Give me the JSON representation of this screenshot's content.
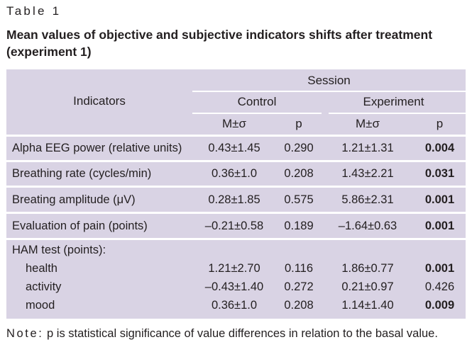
{
  "caption": {
    "label": "Table 1",
    "title": "Mean values of objective and subjective indicators shifts after treatment (experiment 1)"
  },
  "header": {
    "indicators": "Indicators",
    "session": "Session",
    "control": "Control",
    "experiment": "Experiment",
    "mean": "M±σ",
    "p": "p"
  },
  "rows": [
    {
      "indicator": "Alpha EEG power (relative units)",
      "control_m": "0.43±1.45",
      "control_p": "0.290",
      "exp_m": "1.21±1.31",
      "exp_p": "0.004",
      "exp_p_bold": true
    },
    {
      "indicator": "Breathing rate (cycles/min)",
      "control_m": "0.36±1.0",
      "control_p": "0.208",
      "exp_m": "1.43±2.21",
      "exp_p": "0.031",
      "exp_p_bold": true
    },
    {
      "indicator": "Breating amplitude (μV)",
      "control_m": "0.28±1.85",
      "control_p": "0.575",
      "exp_m": "5.86±2.31",
      "exp_p": "0.001",
      "exp_p_bold": true
    },
    {
      "indicator": "Evaluation of pain (points)",
      "control_m": "–0.21±0.58",
      "control_p": "0.189",
      "exp_m": "–1.64±0.63",
      "exp_p": "0.001",
      "exp_p_bold": true
    }
  ],
  "ham": {
    "label": "HAM test (points):",
    "rows": [
      {
        "indicator": "health",
        "control_m": "1.21±2.70",
        "control_p": "0.116",
        "exp_m": "1.86±0.77",
        "exp_p": "0.001",
        "exp_p_bold": true
      },
      {
        "indicator": "activity",
        "control_m": "–0.43±1.40",
        "control_p": "0.272",
        "exp_m": "0.21±0.97",
        "exp_p": "0.426",
        "exp_p_bold": false
      },
      {
        "indicator": "mood",
        "control_m": "0.36±1.0",
        "control_p": "0.208",
        "exp_m": "1.14±1.40",
        "exp_p": "0.009",
        "exp_p_bold": true
      }
    ]
  },
  "note": {
    "label": "Note:",
    "text": " p is statistical significance of value differences in relation to the basal value."
  }
}
